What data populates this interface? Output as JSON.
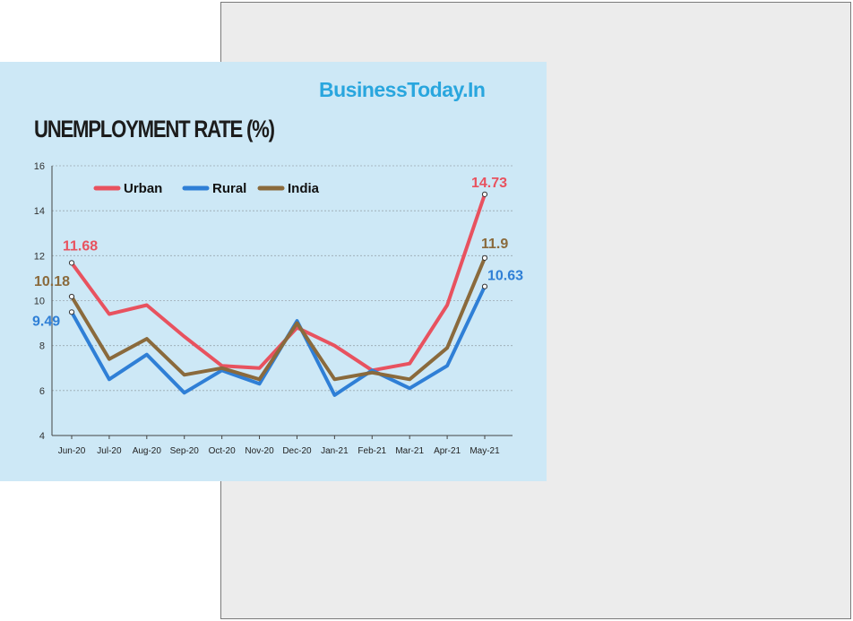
{
  "brand": "BusinessToday.In",
  "colors": {
    "urban": "#e8525f",
    "rural": "#2f7fd6",
    "india": "#8a6a3c",
    "card_bg": "#cde8f6",
    "brand": "#29a6de"
  },
  "chart_data": {
    "type": "line",
    "title": "UNEMPLOYMENT RATE (%)",
    "xlabel": "",
    "ylabel": "",
    "categories": [
      "Jun-20",
      "Jul-20",
      "Aug-20",
      "Sep-20",
      "Oct-20",
      "Nov-20",
      "Dec-20",
      "Jan-21",
      "Feb-21",
      "Mar-21",
      "Apr-21",
      "May-21"
    ],
    "ylim": [
      4,
      16
    ],
    "yticks": [
      4,
      6,
      8,
      10,
      12,
      14,
      16
    ],
    "grid": true,
    "legend_position": "top-left",
    "series": [
      {
        "name": "Urban",
        "color": "#e8525f",
        "values": [
          11.68,
          9.4,
          9.8,
          8.4,
          7.1,
          7.0,
          8.8,
          8.0,
          6.9,
          7.2,
          9.8,
          14.73
        ]
      },
      {
        "name": "Rural",
        "color": "#2f7fd6",
        "values": [
          9.49,
          6.5,
          7.6,
          5.9,
          6.9,
          6.3,
          9.1,
          5.8,
          6.9,
          6.1,
          7.1,
          10.63
        ]
      },
      {
        "name": "India",
        "color": "#8a6a3c",
        "values": [
          10.18,
          7.4,
          8.3,
          6.7,
          7.0,
          6.5,
          9.0,
          6.5,
          6.8,
          6.5,
          7.9,
          11.9
        ]
      }
    ],
    "annotations": [
      {
        "series": "Urban",
        "index": 0,
        "text": "11.68"
      },
      {
        "series": "India",
        "index": 0,
        "text": "10.18"
      },
      {
        "series": "Rural",
        "index": 0,
        "text": "9.49"
      },
      {
        "series": "Urban",
        "index": 11,
        "text": "14.73"
      },
      {
        "series": "India",
        "index": 11,
        "text": "11.9"
      },
      {
        "series": "Rural",
        "index": 11,
        "text": "10.63"
      }
    ]
  }
}
